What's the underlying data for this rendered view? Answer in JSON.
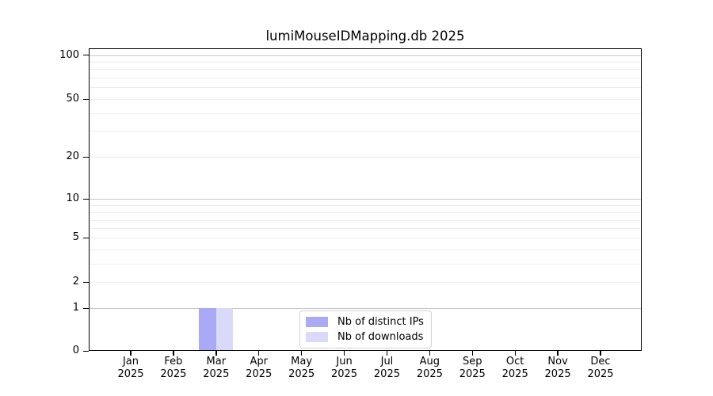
{
  "title": "lumiMouseIDMapping.db 2025",
  "chart_data": {
    "type": "bar",
    "title": "lumiMouseIDMapping.db 2025",
    "categories": [
      "Jan 2025",
      "Feb 2025",
      "Mar 2025",
      "Apr 2025",
      "May 2025",
      "Jun 2025",
      "Jul 2025",
      "Aug 2025",
      "Sep 2025",
      "Oct 2025",
      "Nov 2025",
      "Dec 2025"
    ],
    "series": [
      {
        "name": "Nb of distinct IPs",
        "color": "#a9a9f6",
        "values": [
          0,
          0,
          1,
          0,
          0,
          0,
          0,
          0,
          0,
          0,
          0,
          0
        ]
      },
      {
        "name": "Nb of downloads",
        "color": "#d9d9f9",
        "values": [
          0,
          0,
          1,
          0,
          0,
          0,
          0,
          0,
          0,
          0,
          0,
          0
        ]
      }
    ],
    "y_tick_labels": [
      0,
      1,
      2,
      5,
      10,
      20,
      50,
      100
    ],
    "y_gridline_values": [
      1,
      2,
      3,
      4,
      5,
      6,
      7,
      8,
      9,
      10,
      20,
      30,
      40,
      50,
      60,
      70,
      80,
      90,
      100
    ],
    "y_major_gridline_values": [
      1,
      10,
      100
    ],
    "ylim": [
      0,
      115
    ],
    "scale": "log-like",
    "grid": "horizontal",
    "legend_position": "lower-center-inside"
  }
}
